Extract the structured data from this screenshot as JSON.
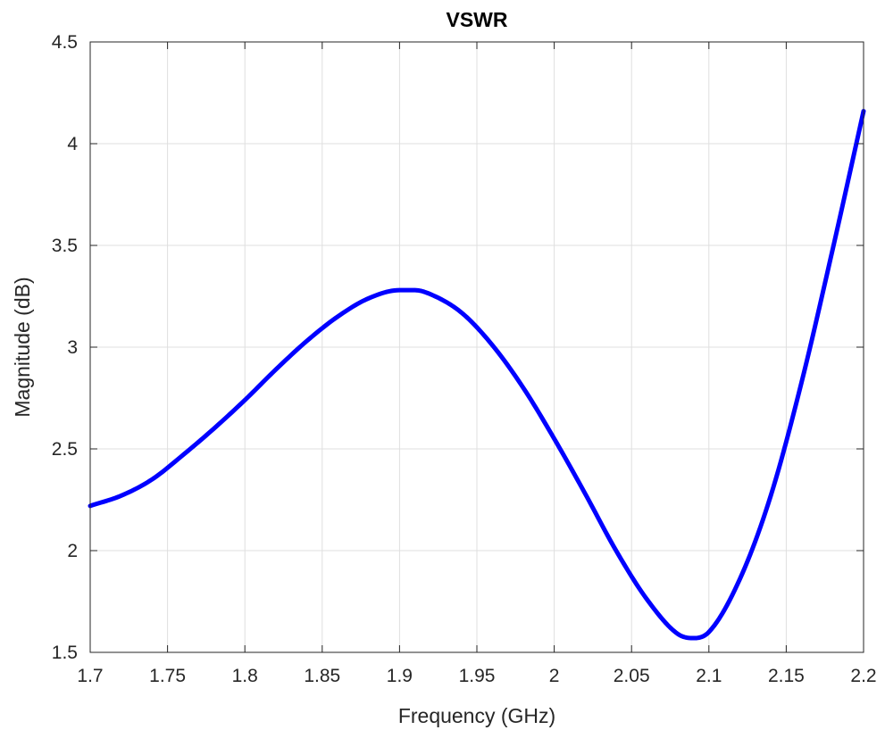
{
  "chart_data": {
    "type": "line",
    "title": "VSWR",
    "xlabel": "Frequency (GHz)",
    "ylabel": "Magnitude (dB)",
    "xlim": [
      1.7,
      2.2
    ],
    "ylim": [
      1.5,
      4.5
    ],
    "x_ticks": [
      "1.7",
      "1.75",
      "1.8",
      "1.85",
      "1.9",
      "1.95",
      "2",
      "2.05",
      "2.1",
      "2.15",
      "2.2"
    ],
    "y_ticks": [
      "1.5",
      "2",
      "2.5",
      "3",
      "3.5",
      "4",
      "4.5"
    ],
    "grid": true,
    "series": [
      {
        "color": "#0000ff",
        "x": [
          1.7,
          1.72,
          1.74,
          1.76,
          1.78,
          1.8,
          1.82,
          1.84,
          1.86,
          1.88,
          1.9,
          1.91,
          1.92,
          1.94,
          1.96,
          1.98,
          2.0,
          2.02,
          2.04,
          2.06,
          2.08,
          2.09,
          2.1,
          2.12,
          2.14,
          2.16,
          2.18,
          2.2
        ],
        "y": [
          2.22,
          2.27,
          2.35,
          2.47,
          2.6,
          2.74,
          2.89,
          3.03,
          3.15,
          3.24,
          3.28,
          3.28,
          3.26,
          3.17,
          3.01,
          2.8,
          2.55,
          2.28,
          2.0,
          1.76,
          1.59,
          1.57,
          1.6,
          1.86,
          2.27,
          2.83,
          3.48,
          4.16
        ]
      }
    ]
  }
}
